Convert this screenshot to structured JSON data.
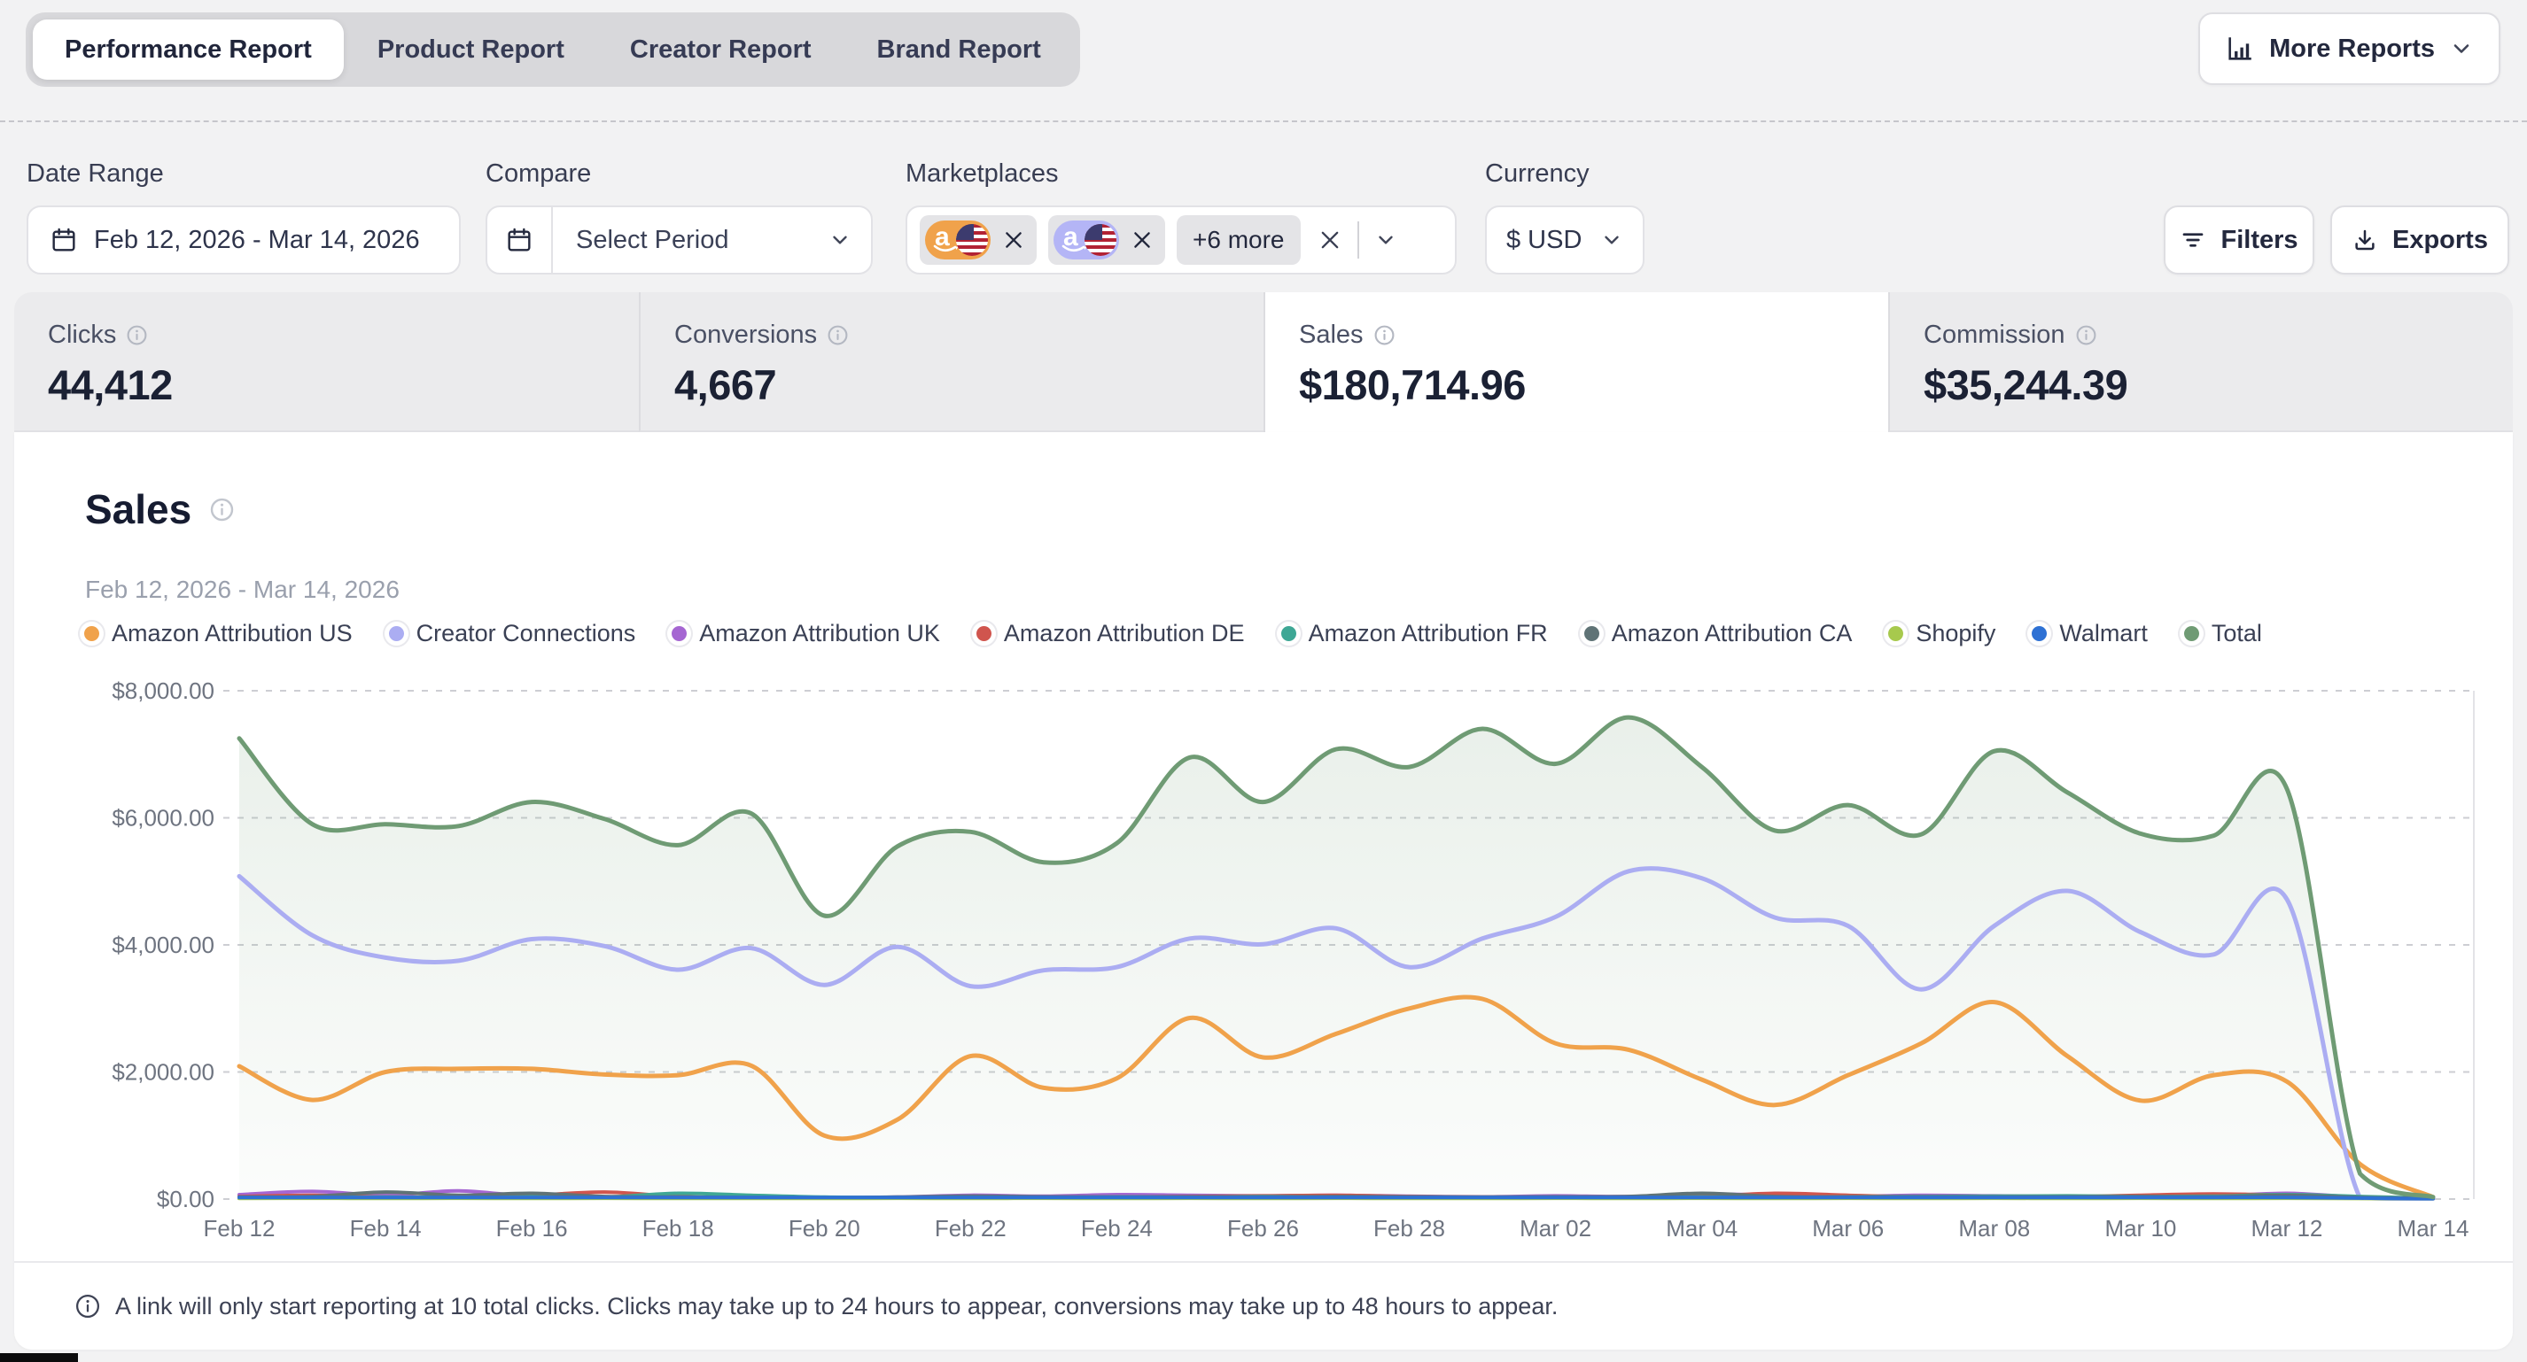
{
  "tabs": {
    "items": [
      {
        "label": "Performance Report",
        "active": true
      },
      {
        "label": "Product Report",
        "active": false
      },
      {
        "label": "Creator Report",
        "active": false
      },
      {
        "label": "Brand Report",
        "active": false
      }
    ]
  },
  "more_reports": {
    "label": "More Reports"
  },
  "filter_bar": {
    "date_range": {
      "label": "Date Range",
      "value": "Feb 12, 2026 - Mar 14, 2026"
    },
    "compare": {
      "label": "Compare",
      "value": "Select Period"
    },
    "marketplaces": {
      "label": "Marketplaces",
      "more_chip": "+6 more",
      "chips": [
        {
          "icon": "amazon-us-marketplace",
          "pill_color": "#f0a24b"
        },
        {
          "icon": "amazon-us-marketplace",
          "pill_color": "#b4b5f6"
        }
      ]
    },
    "currency": {
      "label": "Currency",
      "value": "$ USD"
    },
    "filters_button": {
      "label": "Filters"
    },
    "exports_button": {
      "label": "Exports"
    }
  },
  "metrics": [
    {
      "label": "Clicks",
      "value": "44,412",
      "active": false
    },
    {
      "label": "Conversions",
      "value": "4,667",
      "active": false
    },
    {
      "label": "Sales",
      "value": "$180,714.96",
      "active": true
    },
    {
      "label": "Commission",
      "value": "$35,244.39",
      "active": false
    }
  ],
  "chart_section": {
    "title": "Sales",
    "subtitle": "Feb 12, 2026 - Mar 14, 2026",
    "footnote": "A link will only start reporting at 10 total clicks. Clicks may take up to 24 hours to appear, conversions may take up to 48 hours to appear."
  },
  "chart_data": {
    "type": "line",
    "title": "Sales",
    "xlabel": "",
    "ylabel": "",
    "ylim": [
      0,
      8000
    ],
    "grid": true,
    "legend_position": "top",
    "x_tick_step": 2,
    "x": [
      "Feb 12",
      "Feb 13",
      "Feb 14",
      "Feb 15",
      "Feb 16",
      "Feb 17",
      "Feb 18",
      "Feb 19",
      "Feb 20",
      "Feb 21",
      "Feb 22",
      "Feb 23",
      "Feb 24",
      "Feb 25",
      "Feb 26",
      "Feb 27",
      "Feb 28",
      "Mar 01",
      "Mar 02",
      "Mar 03",
      "Mar 04",
      "Mar 05",
      "Mar 06",
      "Mar 07",
      "Mar 08",
      "Mar 09",
      "Mar 10",
      "Mar 11",
      "Mar 12",
      "Mar 13",
      "Mar 14"
    ],
    "y_ticks": [
      0,
      2000,
      4000,
      6000,
      8000
    ],
    "y_tick_labels": [
      "$0.00",
      "$2,000.00",
      "$4,000.00",
      "$6,000.00",
      "$8,000.00"
    ],
    "series": [
      {
        "name": "Amazon Attribution US",
        "color": "#f0a24b",
        "values": [
          2090,
          1560,
          2000,
          2050,
          2050,
          1960,
          1950,
          2100,
          1000,
          1250,
          2250,
          1750,
          1900,
          2850,
          2230,
          2600,
          3000,
          3150,
          2450,
          2350,
          1880,
          1480,
          1950,
          2450,
          3100,
          2250,
          1550,
          1950,
          1850,
          550,
          30
        ]
      },
      {
        "name": "Creator Connections",
        "color": "#abadf2",
        "values": [
          5080,
          4150,
          3800,
          3750,
          4090,
          3980,
          3610,
          3950,
          3370,
          3970,
          3350,
          3600,
          3650,
          4100,
          4010,
          4260,
          3650,
          4100,
          4440,
          5160,
          5050,
          4430,
          4300,
          3300,
          4300,
          4850,
          4200,
          3850,
          4720,
          20,
          10
        ]
      },
      {
        "name": "Amazon Attribution UK",
        "color": "#a566d2",
        "values": [
          70,
          120,
          60,
          130,
          40,
          30,
          20,
          25,
          15,
          30,
          60,
          45,
          70,
          60,
          50,
          60,
          45,
          35,
          50,
          40,
          80,
          60,
          40,
          60,
          50,
          40,
          30,
          45,
          90,
          30,
          10
        ]
      },
      {
        "name": "Amazon Attribution DE",
        "color": "#d0554e",
        "values": [
          40,
          60,
          30,
          40,
          60,
          110,
          40,
          20,
          15,
          25,
          30,
          35,
          30,
          40,
          50,
          60,
          40,
          30,
          25,
          30,
          40,
          90,
          60,
          30,
          25,
          35,
          60,
          80,
          60,
          30,
          10
        ]
      },
      {
        "name": "Amazon Attribution FR",
        "color": "#3ea795",
        "values": [
          20,
          25,
          30,
          25,
          35,
          30,
          90,
          60,
          30,
          25,
          30,
          25,
          35,
          30,
          40,
          35,
          30,
          25,
          30,
          35,
          30,
          25,
          35,
          40,
          45,
          50,
          40,
          45,
          70,
          40,
          10
        ]
      },
      {
        "name": "Amazon Attribution CA",
        "color": "#5f7376",
        "values": [
          30,
          40,
          110,
          60,
          90,
          40,
          30,
          25,
          20,
          30,
          45,
          35,
          30,
          35,
          30,
          40,
          35,
          30,
          35,
          40,
          90,
          40,
          30,
          35,
          30,
          35,
          40,
          35,
          60,
          25,
          10
        ]
      },
      {
        "name": "Shopify",
        "color": "#a7c94d",
        "values": [
          10,
          12,
          10,
          12,
          10,
          12,
          10,
          10,
          10,
          12,
          10,
          12,
          10,
          12,
          10,
          12,
          10,
          10,
          12,
          10,
          12,
          10,
          12,
          10,
          12,
          10,
          12,
          10,
          12,
          8,
          5
        ]
      },
      {
        "name": "Walmart",
        "color": "#2e71d4",
        "values": [
          25,
          25,
          25,
          25,
          25,
          25,
          25,
          25,
          25,
          25,
          25,
          25,
          25,
          25,
          25,
          25,
          25,
          25,
          25,
          25,
          25,
          25,
          25,
          25,
          25,
          25,
          25,
          25,
          25,
          15,
          5
        ]
      },
      {
        "name": "Total",
        "color": "#6f9b74",
        "area_fill": true,
        "values": [
          7250,
          5900,
          5900,
          5870,
          6250,
          5980,
          5570,
          6070,
          4460,
          5550,
          5780,
          5300,
          5600,
          6950,
          6250,
          7080,
          6800,
          7400,
          6850,
          7580,
          6800,
          5800,
          6200,
          5740,
          7050,
          6400,
          5750,
          5720,
          6460,
          400,
          30
        ]
      }
    ]
  }
}
